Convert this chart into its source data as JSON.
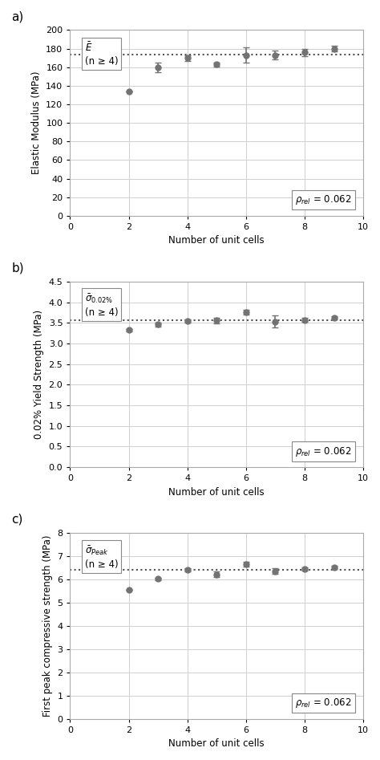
{
  "panel_a": {
    "title_label": "a)",
    "ylabel": "Elastic Modulus (MPa)",
    "xlabel": "Number of unit cells",
    "ylim": [
      0,
      200
    ],
    "yticks": [
      0,
      20,
      40,
      60,
      80,
      100,
      120,
      140,
      160,
      180,
      200
    ],
    "xlim": [
      0,
      10
    ],
    "xticks": [
      0,
      2,
      4,
      6,
      8,
      10
    ],
    "x": [
      2,
      3,
      4,
      5,
      6,
      7,
      8,
      9
    ],
    "y": [
      134,
      160,
      170,
      163,
      173,
      173,
      176,
      180
    ],
    "yerr": [
      0,
      5,
      3,
      2,
      8,
      5,
      4,
      3
    ],
    "hline": 174,
    "legend_line1": "$\\bar{E}$",
    "legend_line2": "(n ≥ 4)",
    "rho_label": "$\\rho_{rel}$ = 0.062",
    "point_color": "#737373",
    "hline_color": "#505050"
  },
  "panel_b": {
    "title_label": "b)",
    "ylabel": "0.02% Yield Strength (MPa)",
    "xlabel": "Number of unit cells",
    "ylim": [
      0,
      4.5
    ],
    "yticks": [
      0,
      0.5,
      1.0,
      1.5,
      2.0,
      2.5,
      3.0,
      3.5,
      4.0,
      4.5
    ],
    "xlim": [
      0,
      10
    ],
    "xticks": [
      0,
      2,
      4,
      6,
      8,
      10
    ],
    "x": [
      2,
      3,
      4,
      5,
      6,
      7,
      8,
      9
    ],
    "y": [
      3.32,
      3.46,
      3.55,
      3.56,
      3.76,
      3.53,
      3.57,
      3.62
    ],
    "yerr": [
      0.02,
      0.05,
      0.04,
      0.07,
      0.06,
      0.15,
      0.05,
      0.04
    ],
    "hline": 3.57,
    "legend_line1": "$\\bar{\\sigma}_{0.02\\%}$",
    "legend_line2": "(n ≥ 4)",
    "rho_label": "$\\rho_{rel}$ = 0.062",
    "point_color": "#737373",
    "hline_color": "#505050"
  },
  "panel_c": {
    "title_label": "c)",
    "ylabel": "First peak compressive strength (MPa)",
    "xlabel": "Number of unit cells",
    "ylim": [
      0,
      8
    ],
    "yticks": [
      0,
      1,
      2,
      3,
      4,
      5,
      6,
      7,
      8
    ],
    "xlim": [
      0,
      10
    ],
    "xticks": [
      0,
      2,
      4,
      6,
      8,
      10
    ],
    "x": [
      2,
      3,
      4,
      5,
      6,
      7,
      8,
      9
    ],
    "y": [
      5.55,
      6.02,
      6.42,
      6.22,
      6.65,
      6.35,
      6.45,
      6.52
    ],
    "yerr": [
      0.0,
      0.05,
      0.06,
      0.12,
      0.1,
      0.12,
      0.07,
      0.07
    ],
    "hline": 6.42,
    "legend_line1": "$\\bar{\\sigma}_{Peak}$",
    "legend_line2": "(n ≥ 4)",
    "rho_label": "$\\rho_{rel}$ = 0.062",
    "point_color": "#737373",
    "hline_color": "#505050"
  },
  "figure": {
    "figsize": [
      4.74,
      9.47
    ],
    "dpi": 100,
    "bg_color": "#ffffff",
    "grid_color": "#d0d0d0",
    "label_fontsize": 8.5,
    "tick_fontsize": 8,
    "panel_label_fontsize": 11,
    "legend_fontsize": 8.5
  }
}
